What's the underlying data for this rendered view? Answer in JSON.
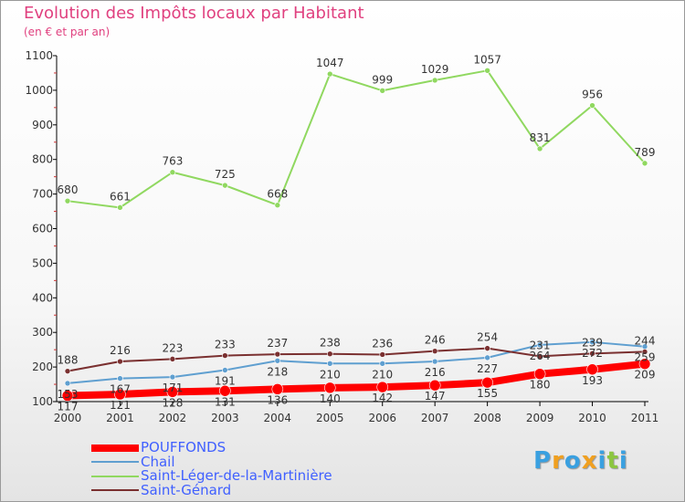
{
  "title": "Evolution des Impôts locaux par Habitant",
  "subtitle": "(en € et par an)",
  "brand": {
    "letters": [
      "P",
      "r",
      "o",
      "x",
      "i",
      "t",
      "i"
    ],
    "colors": [
      "#3aa0e0",
      "#f0a020",
      "#3aa0e0",
      "#f0a020",
      "#3aa0e0",
      "#8cc63f",
      "#3aa0e0"
    ]
  },
  "chart_data": {
    "type": "line",
    "title": "Evolution des Impôts locaux par Habitant",
    "subtitle": "(en € et par an)",
    "x": [
      "2000",
      "2001",
      "2002",
      "2003",
      "2004",
      "2005",
      "2006",
      "2007",
      "2008",
      "2009",
      "2010",
      "2011"
    ],
    "ylim": [
      100,
      1100
    ],
    "yticks": [
      100,
      200,
      300,
      400,
      500,
      600,
      700,
      800,
      900,
      1000,
      1100
    ],
    "grid": false,
    "legend_position": "bottom-left",
    "series": [
      {
        "name": "POUFFONDS",
        "color": "#ff0000",
        "values": [
          117,
          121,
          128,
          131,
          136,
          140,
          142,
          147,
          155,
          180,
          193,
          209
        ],
        "labels": [
          "117",
          "121",
          "128",
          "131",
          "136",
          "140",
          "142",
          "147",
          "155",
          "180",
          "193",
          "209"
        ]
      },
      {
        "name": "Chail",
        "color": "#5f9fd0",
        "values": [
          153,
          167,
          171,
          191,
          218,
          210,
          210,
          216,
          227,
          264,
          272,
          259
        ],
        "labels": [
          "153",
          "167",
          "171",
          "191",
          "218",
          "210",
          "210",
          "216",
          "227",
          "264",
          "272",
          "259"
        ]
      },
      {
        "name": "Saint-Léger-de-la-Martinière",
        "color": "#90d860",
        "values": [
          680,
          661,
          763,
          725,
          668,
          1047,
          999,
          1029,
          1057,
          831,
          956,
          789
        ],
        "labels": [
          "680",
          "661",
          "763",
          "725",
          "668",
          "1047",
          "999",
          "1029",
          "1057",
          "831",
          "956",
          "789"
        ]
      },
      {
        "name": "Saint-Génard",
        "color": "#7a3030",
        "values": [
          188,
          216,
          223,
          233,
          237,
          238,
          236,
          246,
          254,
          231,
          239,
          244
        ],
        "labels": [
          "188",
          "216",
          "223",
          "233",
          "237",
          "238",
          "236",
          "246",
          "254",
          "231",
          "239",
          "244"
        ]
      }
    ]
  }
}
